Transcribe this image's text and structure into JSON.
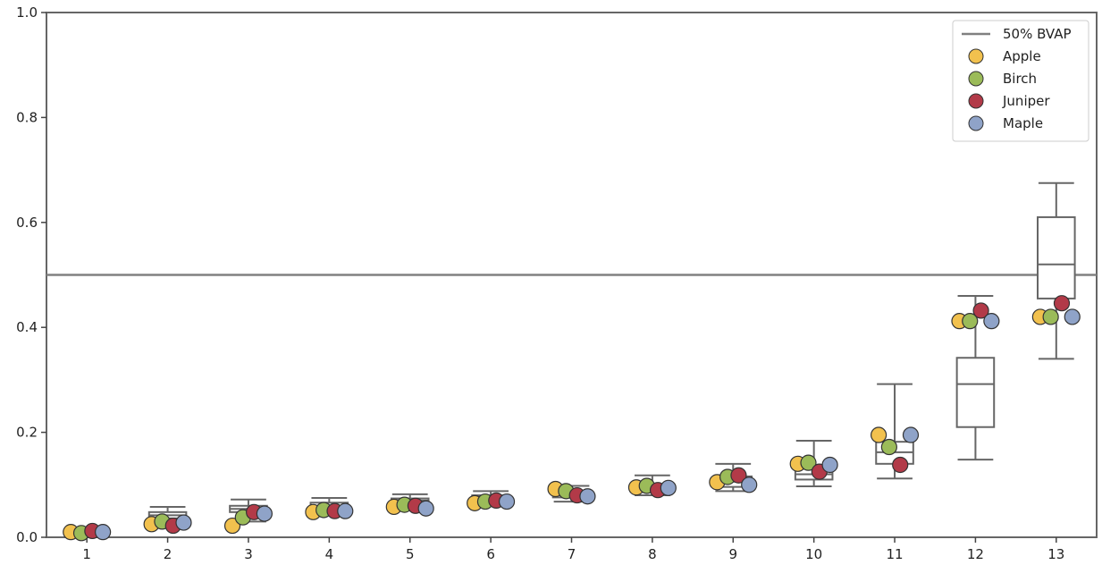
{
  "chart_data": {
    "type": "box_strip",
    "categories": [
      "1",
      "2",
      "3",
      "4",
      "5",
      "6",
      "7",
      "8",
      "9",
      "10",
      "11",
      "12",
      "13"
    ],
    "ylim": [
      0.0,
      1.0
    ],
    "yticks": [
      0.0,
      0.2,
      0.4,
      0.6,
      0.8,
      1.0
    ],
    "ytick_labels": [
      "0.0",
      "0.2",
      "0.4",
      "0.6",
      "0.8",
      "1.0"
    ],
    "reference_line": {
      "name": "50% BVAP",
      "y": 0.5,
      "color": "#808080"
    },
    "boxes": [
      {
        "whislo": 0.005,
        "q1": 0.008,
        "med": 0.01,
        "q3": 0.012,
        "whishi": 0.014
      },
      {
        "whislo": 0.018,
        "q1": 0.036,
        "med": 0.042,
        "q3": 0.048,
        "whishi": 0.058
      },
      {
        "whislo": 0.03,
        "q1": 0.048,
        "med": 0.054,
        "q3": 0.06,
        "whishi": 0.072
      },
      {
        "whislo": 0.05,
        "q1": 0.056,
        "med": 0.06,
        "q3": 0.066,
        "whishi": 0.075
      },
      {
        "whislo": 0.058,
        "q1": 0.065,
        "med": 0.07,
        "q3": 0.074,
        "whishi": 0.082
      },
      {
        "whislo": 0.062,
        "q1": 0.072,
        "med": 0.076,
        "q3": 0.08,
        "whishi": 0.088
      },
      {
        "whislo": 0.068,
        "q1": 0.076,
        "med": 0.081,
        "q3": 0.085,
        "whishi": 0.098
      },
      {
        "whislo": 0.08,
        "q1": 0.086,
        "med": 0.091,
        "q3": 0.098,
        "whishi": 0.118
      },
      {
        "whislo": 0.088,
        "q1": 0.096,
        "med": 0.106,
        "q3": 0.116,
        "whishi": 0.14
      },
      {
        "whislo": 0.097,
        "q1": 0.11,
        "med": 0.12,
        "q3": 0.134,
        "whishi": 0.184
      },
      {
        "whislo": 0.112,
        "q1": 0.14,
        "med": 0.162,
        "q3": 0.182,
        "whishi": 0.292
      },
      {
        "whislo": 0.148,
        "q1": 0.21,
        "med": 0.292,
        "q3": 0.342,
        "whishi": 0.46
      },
      {
        "whislo": 0.34,
        "q1": 0.455,
        "med": 0.52,
        "q3": 0.61,
        "whishi": 0.675
      }
    ],
    "series": [
      {
        "name": "Apple",
        "color": "#f2c14e",
        "values": [
          0.01,
          0.025,
          0.022,
          0.048,
          0.058,
          0.065,
          0.092,
          0.095,
          0.105,
          0.14,
          0.195,
          0.412,
          0.42
        ]
      },
      {
        "name": "Birch",
        "color": "#9bbb59",
        "values": [
          0.008,
          0.03,
          0.038,
          0.052,
          0.062,
          0.068,
          0.088,
          0.098,
          0.115,
          0.142,
          0.172,
          0.412,
          0.42
        ]
      },
      {
        "name": "Juniper",
        "color": "#b23a48",
        "values": [
          0.012,
          0.022,
          0.048,
          0.05,
          0.06,
          0.07,
          0.08,
          0.09,
          0.118,
          0.125,
          0.138,
          0.432,
          0.446
        ]
      },
      {
        "name": "Maple",
        "color": "#8fa3c8",
        "values": [
          0.01,
          0.028,
          0.045,
          0.05,
          0.055,
          0.068,
          0.078,
          0.094,
          0.1,
          0.138,
          0.195,
          0.412,
          0.42
        ]
      }
    ],
    "legend": {
      "position": "top-right"
    },
    "grid": false
  }
}
